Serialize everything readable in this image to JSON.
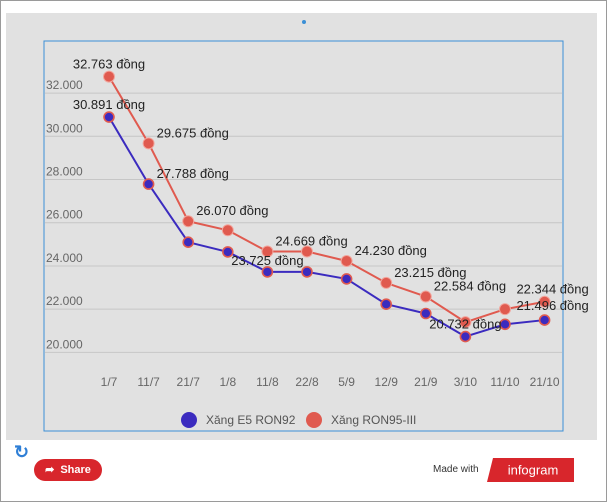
{
  "chart_data": {
    "type": "line",
    "categories": [
      "1/7",
      "11/7",
      "21/7",
      "1/8",
      "11/8",
      "22/8",
      "5/9",
      "12/9",
      "21/9",
      "3/10",
      "11/10",
      "21/10"
    ],
    "y_ticks": [
      "32.000",
      "30.000",
      "28.000",
      "26.000",
      "24.000",
      "22.000",
      "20.000"
    ],
    "ylim": [
      19000,
      33300
    ],
    "grid": true,
    "legend_position": "bottom",
    "series": [
      {
        "name": "Xăng E5 RON92",
        "color": "#3b2bbf",
        "values": [
          30891,
          27788,
          25100,
          24650,
          23725,
          23725,
          23400,
          22230,
          21800,
          20732,
          21300,
          21496
        ]
      },
      {
        "name": "Xăng RON95-III",
        "color": "#e05a4f",
        "values": [
          32763,
          29675,
          26070,
          25650,
          24669,
          24669,
          24230,
          23215,
          22584,
          21400,
          22000,
          22344
        ]
      }
    ],
    "data_labels": [
      {
        "series": 1,
        "index": 0,
        "text": "32.763 đồng"
      },
      {
        "series": 0,
        "index": 0,
        "text": "30.891 đồng"
      },
      {
        "series": 1,
        "index": 1,
        "text": "29.675 đồng"
      },
      {
        "series": 0,
        "index": 1,
        "text": "27.788 đồng"
      },
      {
        "series": 1,
        "index": 2,
        "text": "26.070 đồng"
      },
      {
        "series": 1,
        "index": 4,
        "text": "24.669 đồng"
      },
      {
        "series": 1,
        "index": 6,
        "text": "24.230 đồng"
      },
      {
        "series": 0,
        "index": 4,
        "text": "23.725 đồng"
      },
      {
        "series": 1,
        "index": 7,
        "text": "23.215 đồng"
      },
      {
        "series": 1,
        "index": 8,
        "text": "22.584 đồng"
      },
      {
        "series": 1,
        "index": 11,
        "text": "22.344 đồng"
      },
      {
        "series": 0,
        "index": 11,
        "text": "21.496 đồng"
      },
      {
        "series": 0,
        "index": 9,
        "text": "20.732 đồng"
      }
    ],
    "colors": {
      "grid": "#c6c6c6",
      "axis_text": "#666666",
      "label_text": "#222222",
      "frame": "#3a8fd6"
    }
  },
  "footer": {
    "share_label": "Share",
    "made_with_label": "Made with",
    "brand_name": "infogram",
    "brand_color": "#d8262c",
    "share_icon": "share-icon",
    "refresh_icon": "refresh-icon"
  }
}
